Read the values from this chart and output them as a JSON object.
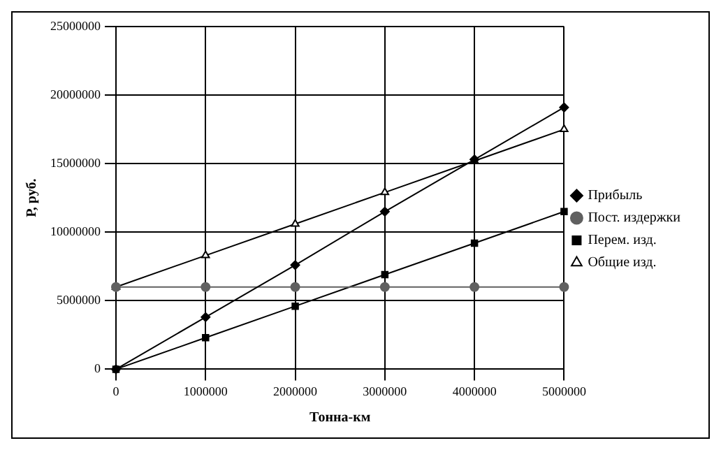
{
  "chart_data": {
    "type": "line",
    "xlabel": "Тонна-км",
    "ylabel": "Р, руб.",
    "x": [
      0,
      1000000,
      2000000,
      3000000,
      4000000,
      5000000
    ],
    "series": [
      {
        "name": "Прибыль",
        "color": "#000000",
        "marker": "diamond",
        "values": [
          0,
          3800000,
          7600000,
          11500000,
          15300000,
          19100000
        ]
      },
      {
        "name": "Пост. издержки",
        "color": "#606060",
        "marker": "circle",
        "values": [
          6000000,
          6000000,
          6000000,
          6000000,
          6000000,
          6000000
        ]
      },
      {
        "name": "Перем. изд.",
        "color": "#000000",
        "marker": "square",
        "values": [
          0,
          2300000,
          4600000,
          6900000,
          9200000,
          11500000
        ]
      },
      {
        "name": "Общие изд.",
        "color": "#000000",
        "marker": "triangle",
        "values": [
          6000000,
          8300000,
          10600000,
          12900000,
          15200000,
          17500000
        ]
      }
    ],
    "xlim": [
      0,
      5000000
    ],
    "xticks": [
      0,
      1000000,
      2000000,
      3000000,
      4000000,
      5000000
    ],
    "ylim": [
      0,
      25000000
    ],
    "yticks": [
      0,
      5000000,
      10000000,
      15000000,
      20000000,
      25000000
    ],
    "grid": true,
    "legend": "right"
  }
}
